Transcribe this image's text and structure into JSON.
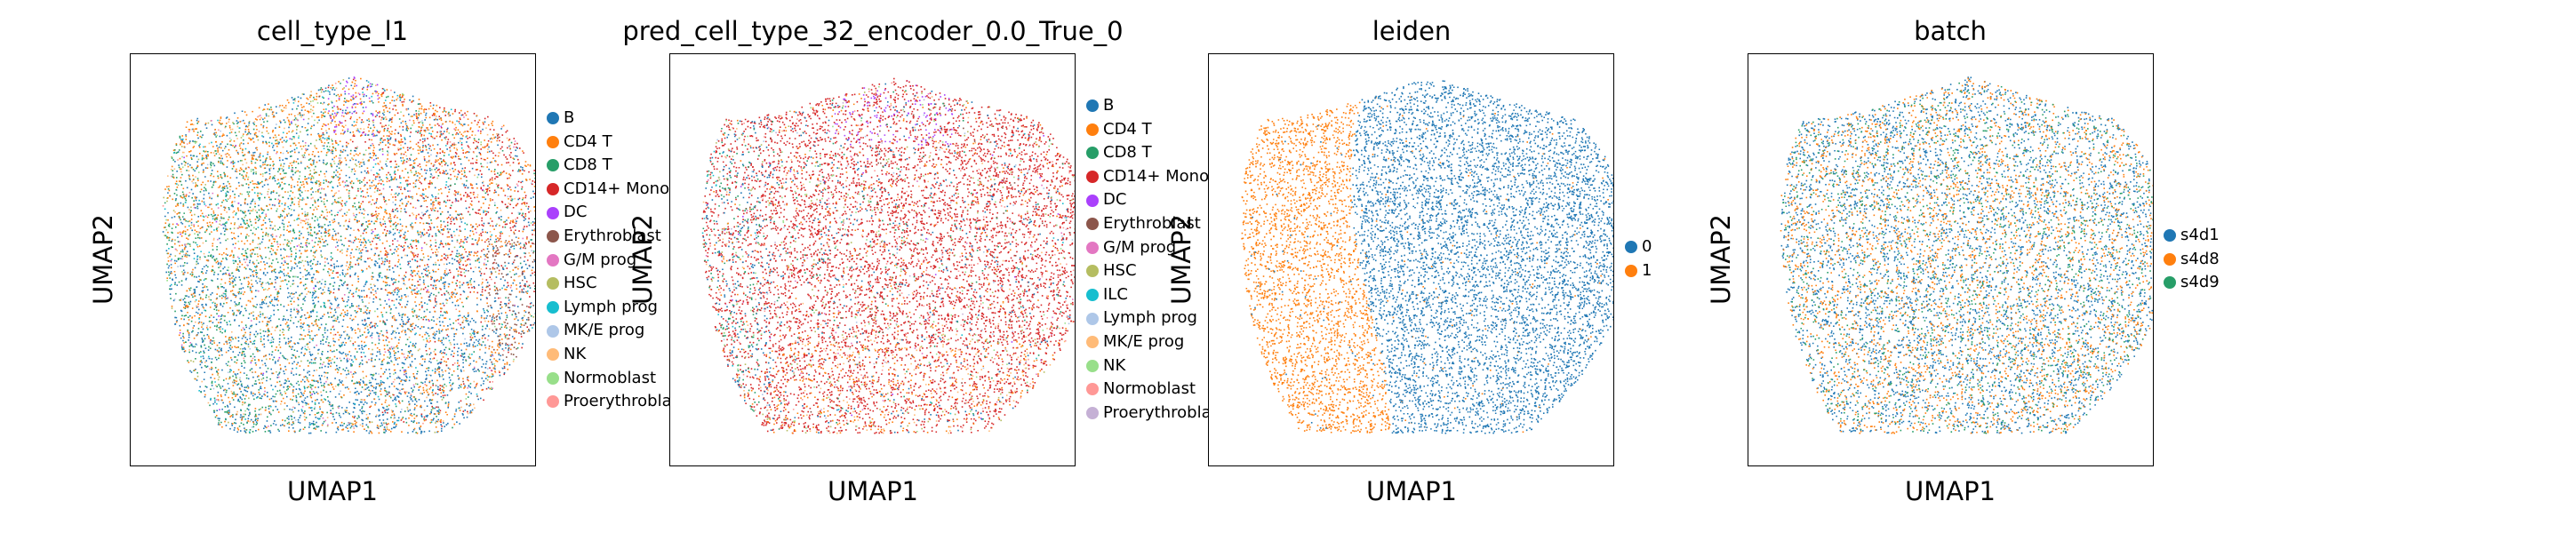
{
  "chart_data": [
    {
      "type": "scatter",
      "title": "cell_type_l1",
      "xlabel": "UMAP1",
      "ylabel": "UMAP2",
      "grid": false,
      "legend_position": "right",
      "categories": [
        "B",
        "CD4 T",
        "CD8 T",
        "CD14+ Mono",
        "DC",
        "Erythroblast",
        "G/M prog",
        "HSC",
        "Lymph prog",
        "MK/E prog",
        "NK",
        "Normoblast",
        "Proerythroblast"
      ],
      "colors": [
        "#1f77b4",
        "#ff7f0e",
        "#279e68",
        "#d62728",
        "#aa40fc",
        "#8c564b",
        "#e377c2",
        "#b5bd61",
        "#17becf",
        "#aec7e8",
        "#ffbb78",
        "#98df8a",
        "#ff9896"
      ]
    },
    {
      "type": "scatter",
      "title": "pred_cell_type_32_encoder_0.0_True_0",
      "xlabel": "UMAP1",
      "ylabel": "UMAP2",
      "grid": false,
      "legend_position": "right",
      "categories": [
        "B",
        "CD4 T",
        "CD8 T",
        "CD14+ Mono",
        "DC",
        "Erythroblast",
        "G/M prog",
        "HSC",
        "ILC",
        "Lymph prog",
        "MK/E prog",
        "NK",
        "Normoblast",
        "Proerythroblast"
      ],
      "colors": [
        "#1f77b4",
        "#ff7f0e",
        "#279e68",
        "#d62728",
        "#aa40fc",
        "#8c564b",
        "#e377c2",
        "#b5bd61",
        "#17becf",
        "#aec7e8",
        "#ffbb78",
        "#98df8a",
        "#ff9896",
        "#c5b0d5"
      ]
    },
    {
      "type": "scatter",
      "title": "leiden",
      "xlabel": "UMAP1",
      "ylabel": "UMAP2",
      "grid": false,
      "legend_position": "right",
      "categories": [
        "0",
        "1"
      ],
      "colors": [
        "#1f77b4",
        "#ff7f0e"
      ]
    },
    {
      "type": "scatter",
      "title": "batch",
      "xlabel": "UMAP1",
      "ylabel": "UMAP2",
      "grid": false,
      "legend_position": "right",
      "categories": [
        "s4d1",
        "s4d8",
        "s4d9"
      ],
      "colors": [
        "#1f77b4",
        "#ff7f0e",
        "#279e68"
      ]
    }
  ]
}
